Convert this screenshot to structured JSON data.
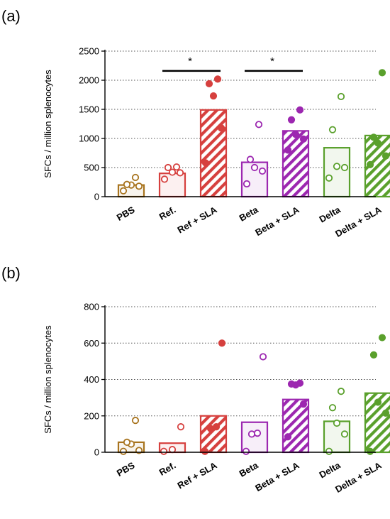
{
  "chart_data": [
    {
      "panel_label": "(a)",
      "type": "bar",
      "ylabel": "SFCs / million splenocytes",
      "ylim": [
        0,
        2500
      ],
      "yticks": [
        0,
        500,
        1000,
        1500,
        2000,
        2500
      ],
      "grid": true,
      "categories": [
        "PBS",
        "Ref.",
        "Ref + SLA",
        "Beta",
        "Beta + SLA",
        "Delta",
        "Delta + SLA"
      ],
      "colors": [
        "#a8741e",
        "#d6403e",
        "#d6403e",
        "#9c27b0",
        "#9c27b0",
        "#5aa02c",
        "#5aa02c"
      ],
      "hatched": [
        false,
        false,
        true,
        false,
        true,
        false,
        true
      ],
      "filled_points": [
        false,
        false,
        true,
        false,
        true,
        false,
        true
      ],
      "values": [
        200,
        400,
        1490,
        590,
        1130,
        840,
        1050
      ],
      "points": [
        [
          100,
          180,
          200,
          210,
          330
        ],
        [
          300,
          410,
          420,
          500,
          510
        ],
        [
          580,
          1180,
          1730,
          1940,
          2020
        ],
        [
          220,
          440,
          500,
          640,
          1240
        ],
        [
          800,
          990,
          1070,
          1320,
          1490
        ],
        [
          320,
          500,
          520,
          1150,
          1720
        ],
        [
          550,
          700,
          920,
          1020,
          2130
        ]
      ],
      "significance": [
        {
          "from": 1,
          "to": 2,
          "y": 2160,
          "label": "*"
        },
        {
          "from": 3,
          "to": 4,
          "y": 2160,
          "label": "*"
        }
      ]
    },
    {
      "panel_label": "(b)",
      "type": "bar",
      "ylabel": "SFCs / million splenocytes",
      "ylim": [
        0,
        800
      ],
      "yticks": [
        0,
        200,
        400,
        600,
        800
      ],
      "grid": true,
      "categories": [
        "PBS",
        "Ref.",
        "Ref + SLA",
        "Beta",
        "Beta + SLA",
        "Delta",
        "Delta + SLA"
      ],
      "colors": [
        "#a8741e",
        "#d6403e",
        "#d6403e",
        "#9c27b0",
        "#9c27b0",
        "#5aa02c",
        "#5aa02c"
      ],
      "hatched": [
        false,
        false,
        true,
        false,
        true,
        false,
        true
      ],
      "filled_points": [
        false,
        false,
        true,
        false,
        true,
        false,
        true
      ],
      "values": [
        55,
        50,
        200,
        165,
        290,
        170,
        325
      ],
      "points": [
        [
          5,
          10,
          45,
          55,
          175
        ],
        [
          5,
          15,
          140
        ],
        [
          5,
          130,
          140,
          600
        ],
        [
          5,
          100,
          105,
          525
        ],
        [
          85,
          265,
          370,
          375,
          380
        ],
        [
          5,
          100,
          160,
          245,
          335
        ],
        [
          5,
          215,
          275,
          535,
          630
        ]
      ],
      "significance": []
    }
  ]
}
